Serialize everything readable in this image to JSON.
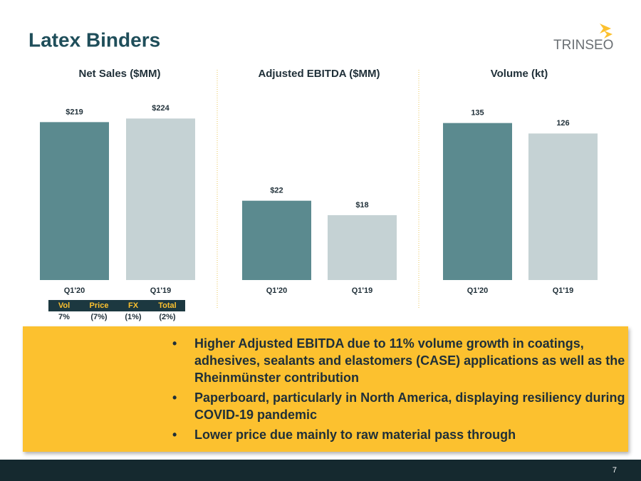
{
  "title": "Latex Binders",
  "logo": "TRINSEO",
  "chart_data": [
    {
      "type": "bar",
      "title": "Net Sales ($MM)",
      "categories": [
        "Q1'20",
        "Q1'19"
      ],
      "values": [
        219,
        224
      ],
      "value_labels": [
        "$219",
        "$224"
      ],
      "colors": [
        "#5b8a8f",
        "#c5d2d4"
      ],
      "ylim": [
        0,
        250
      ]
    },
    {
      "type": "bar",
      "title": "Adjusted EBITDA ($MM)",
      "categories": [
        "Q1'20",
        "Q1'19"
      ],
      "values": [
        22,
        18
      ],
      "value_labels": [
        "$22",
        "$18"
      ],
      "colors": [
        "#5b8a8f",
        "#c5d2d4"
      ],
      "ylim": [
        0,
        50
      ]
    },
    {
      "type": "bar",
      "title": "Volume (kt)",
      "categories": [
        "Q1'20",
        "Q1'19"
      ],
      "values": [
        135,
        126
      ],
      "colors": [
        "#5b8a8f",
        "#c5d2d4"
      ],
      "ylim": [
        0,
        155
      ]
    }
  ],
  "bridge": {
    "headers": [
      "Vol",
      "Price",
      "FX",
      "Total"
    ],
    "values": [
      "7%",
      "(7%)",
      "(1%)",
      "(2%)"
    ]
  },
  "bullets": [
    "Higher Adjusted EBITDA due to 11% volume growth in coatings, adhesives, sealants and elastomers (CASE) applications as well as the Rheinmünster contribution",
    "Paperboard, particularly in North America, displaying resiliency during COVID-19 pandemic",
    "Lower price due mainly to raw material pass through"
  ],
  "page_number": "7"
}
